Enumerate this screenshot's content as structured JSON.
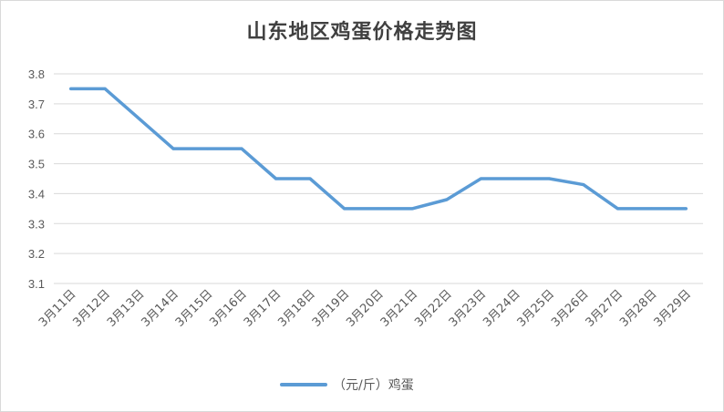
{
  "chart_data": {
    "type": "line",
    "title": "山东地区鸡蛋价格走势图",
    "xlabel": "",
    "ylabel": "",
    "ylim": [
      3.1,
      3.8
    ],
    "yticks": [
      "3.1",
      "3.2",
      "3.3",
      "3.4",
      "3.5",
      "3.6",
      "3.7",
      "3.8"
    ],
    "grid": true,
    "legend_position": "bottom",
    "categories": [
      "3月11日",
      "3月12日",
      "3月13日",
      "3月14日",
      "3月15日",
      "3月16日",
      "3月17日",
      "3月18日",
      "3月19日",
      "3月20日",
      "3月21日",
      "3月22日",
      "3月23日",
      "3月24日",
      "3月25日",
      "3月26日",
      "3月27日",
      "3月28日",
      "3月29日"
    ],
    "series": [
      {
        "name": "（元/斤）鸡蛋",
        "color": "#5b9bd5",
        "values": [
          3.75,
          3.75,
          3.65,
          3.55,
          3.55,
          3.55,
          3.45,
          3.45,
          3.35,
          3.35,
          3.35,
          3.38,
          3.45,
          3.45,
          3.45,
          3.43,
          3.35,
          3.35,
          3.35
        ]
      }
    ]
  }
}
